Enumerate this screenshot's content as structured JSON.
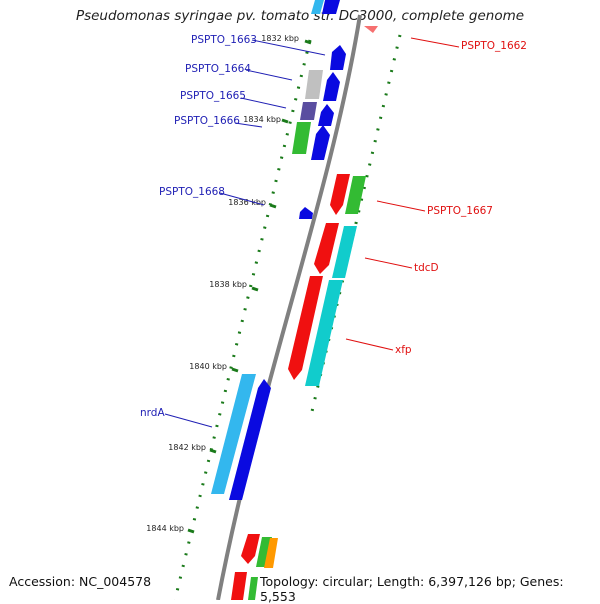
{
  "title": "Pseudomonas syringae pv. tomato str. DC3000, complete genome",
  "accession": "Accession: NC_004578",
  "topology": "Topology: circular; Length: 6,397,126 bp; Genes: 5,553",
  "colors": {
    "backbone": "#808080",
    "tick": "#1a7a1a",
    "label_left": "#1f1fb4",
    "label_right": "#e01010",
    "blue": "#0a0ae0",
    "red": "#f01010",
    "green": "#33bb33",
    "cyan": "#11cccc",
    "lightblue": "#33b7ee",
    "gray": "#c0c0c0",
    "slate": "#5a4ea0",
    "orange": "#ff9900"
  },
  "kbp_labels": [
    "1832 kbp",
    "1834 kbp",
    "1836 kbp",
    "1838 kbp",
    "1840 kbp",
    "1842 kbp",
    "1844 kbp"
  ],
  "genes_left": [
    {
      "name": "PSPTO_1663"
    },
    {
      "name": "PSPTO_1664"
    },
    {
      "name": "PSPTO_1665"
    },
    {
      "name": "PSPTO_1666"
    },
    {
      "name": "PSPTO_1668"
    },
    {
      "name": "nrdA"
    }
  ],
  "genes_right": [
    {
      "name": "PSPTO_1662"
    },
    {
      "name": "PSPTO_1667"
    },
    {
      "name": "tdcD"
    },
    {
      "name": "xfp"
    }
  ]
}
